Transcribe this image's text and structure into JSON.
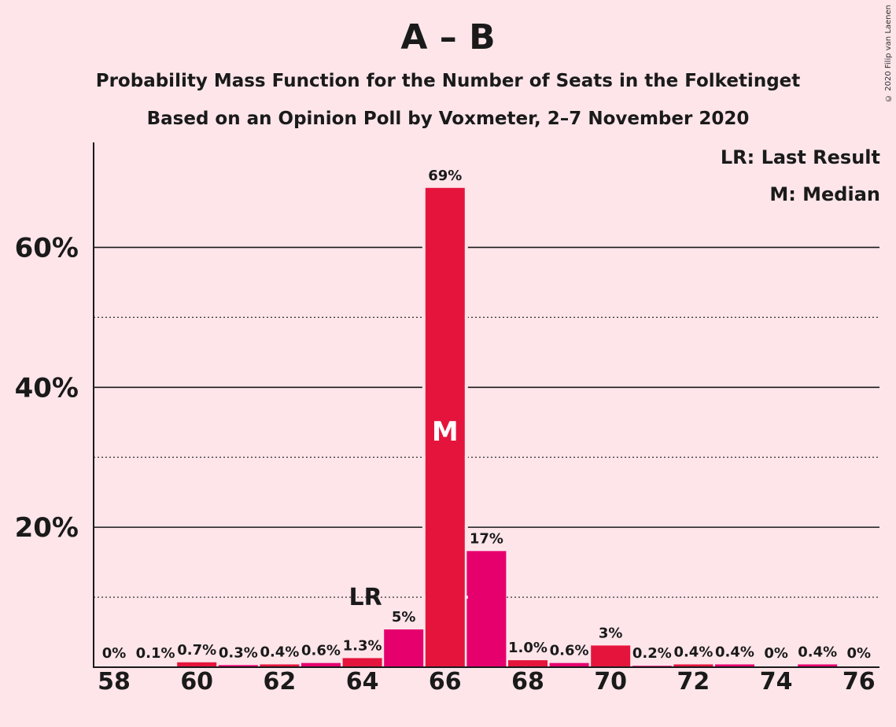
{
  "chart_data": {
    "type": "bar",
    "title": "A – B",
    "subtitle_1": "Probability Mass Function for the Number of Seats in the Folketinget",
    "subtitle_2": "Based on an Opinion Poll by Voxmeter, 2–7 November 2020",
    "copyright": "© 2020 Filip van Laenen",
    "legend": [
      "LR: Last Result",
      "M: Median"
    ],
    "categories": [
      58,
      59,
      60,
      61,
      62,
      63,
      64,
      65,
      66,
      67,
      68,
      69,
      70,
      71,
      72,
      73,
      74,
      75,
      76
    ],
    "values": [
      0,
      0.1,
      0.7,
      0.3,
      0.4,
      0.6,
      1.3,
      5.4,
      68.5,
      16.6,
      1.0,
      0.6,
      3.1,
      0.2,
      0.4,
      0.4,
      0,
      0.4,
      0
    ],
    "labels": [
      "0%",
      "0.1%",
      "0.7%",
      "0.3%",
      "0.4%",
      "0.6%",
      "1.3%",
      "5%",
      "69%",
      "17%",
      "1.0%",
      "0.6%",
      "3%",
      "0.2%",
      "0.4%",
      "0.4%",
      "0%",
      "0.4%",
      "0%"
    ],
    "colors": [
      "#e6006e",
      "#e6006e",
      "#e5143c",
      "#e6006e",
      "#e5143c",
      "#e6006e",
      "#e5143c",
      "#e6006e",
      "#e5143c",
      "#e6006e",
      "#e5143c",
      "#e6006e",
      "#e5143c",
      "#e6006e",
      "#e5143c",
      "#e6006e",
      "#e5143c",
      "#e6006e",
      "#e5143c"
    ],
    "x_tick_labels": [
      "58",
      "60",
      "62",
      "64",
      "66",
      "68",
      "70",
      "72",
      "74",
      "76"
    ],
    "y_ticks": [
      {
        "value": 20,
        "label": "20%"
      },
      {
        "value": 40,
        "label": "40%"
      },
      {
        "value": 60,
        "label": "60%"
      }
    ],
    "y_minor_ticks": [
      10,
      30,
      50
    ],
    "ylim": [
      0,
      75
    ],
    "last_result": {
      "x": 64,
      "label": "LR"
    },
    "median": {
      "x": 66,
      "label": "M"
    }
  }
}
